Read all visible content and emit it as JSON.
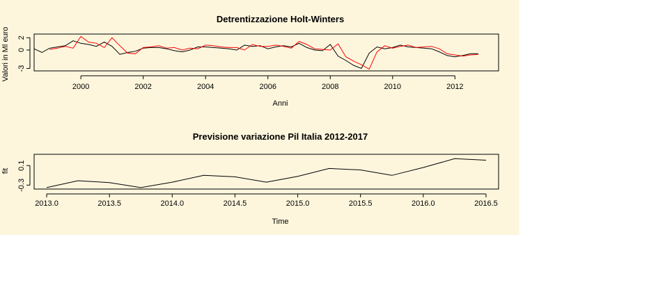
{
  "chart_data": [
    {
      "type": "line",
      "title": "Detrentizzazione Holt-Winters",
      "xlabel": "Anni",
      "ylabel": "Valori in Ml euro",
      "xlim": [
        1998.5,
        2013.4
      ],
      "ylim": [
        -3.4,
        2.6
      ],
      "xticks": [
        2000,
        2002,
        2004,
        2006,
        2008,
        2010,
        2012
      ],
      "yticks": [
        -3,
        0,
        2
      ],
      "grid": false,
      "series": [
        {
          "color": "#000000",
          "values": [
            [
              1998.5,
              0.2
            ],
            [
              1998.75,
              -0.4
            ],
            [
              1999.0,
              0.3
            ],
            [
              1999.25,
              0.5
            ],
            [
              1999.5,
              0.7
            ],
            [
              1999.75,
              1.5
            ],
            [
              2000.0,
              1.1
            ],
            [
              2000.25,
              0.9
            ],
            [
              2000.5,
              0.6
            ],
            [
              2000.75,
              1.3
            ],
            [
              2001.0,
              0.6
            ],
            [
              2001.25,
              -0.7
            ],
            [
              2001.5,
              -0.4
            ],
            [
              2001.75,
              -0.2
            ],
            [
              2002.0,
              0.3
            ],
            [
              2002.25,
              0.4
            ],
            [
              2002.5,
              0.4
            ],
            [
              2002.75,
              0.2
            ],
            [
              2003.0,
              -0.1
            ],
            [
              2003.25,
              -0.3
            ],
            [
              2003.5,
              0.0
            ],
            [
              2003.75,
              0.5
            ],
            [
              2004.0,
              0.5
            ],
            [
              2004.25,
              0.4
            ],
            [
              2004.5,
              0.3
            ],
            [
              2004.75,
              0.2
            ],
            [
              2005.0,
              0.0
            ],
            [
              2005.25,
              0.8
            ],
            [
              2005.5,
              0.6
            ],
            [
              2005.75,
              0.7
            ],
            [
              2006.0,
              0.2
            ],
            [
              2006.25,
              0.5
            ],
            [
              2006.5,
              0.7
            ],
            [
              2006.75,
              0.5
            ],
            [
              2007.0,
              1.1
            ],
            [
              2007.25,
              0.4
            ],
            [
              2007.5,
              0.0
            ],
            [
              2007.75,
              -0.1
            ],
            [
              2008.0,
              0.9
            ],
            [
              2008.25,
              -1.0
            ],
            [
              2008.5,
              -1.7
            ],
            [
              2008.75,
              -2.5
            ],
            [
              2009.0,
              -3.0
            ],
            [
              2009.25,
              -0.5
            ],
            [
              2009.5,
              0.5
            ],
            [
              2009.75,
              0.2
            ],
            [
              2010.0,
              0.4
            ],
            [
              2010.25,
              0.8
            ],
            [
              2010.5,
              0.5
            ],
            [
              2010.75,
              0.4
            ],
            [
              2011.0,
              0.3
            ],
            [
              2011.25,
              0.2
            ],
            [
              2011.5,
              -0.3
            ],
            [
              2011.75,
              -0.9
            ],
            [
              2012.0,
              -1.1
            ],
            [
              2012.25,
              -0.9
            ],
            [
              2012.5,
              -0.6
            ],
            [
              2012.75,
              -0.6
            ]
          ]
        },
        {
          "color": "#ff0000",
          "values": [
            [
              1999.0,
              0.1
            ],
            [
              1999.25,
              0.3
            ],
            [
              1999.5,
              0.6
            ],
            [
              1999.75,
              0.3
            ],
            [
              2000.0,
              2.2
            ],
            [
              2000.25,
              1.3
            ],
            [
              2000.5,
              1.1
            ],
            [
              2000.75,
              0.4
            ],
            [
              2001.0,
              2.0
            ],
            [
              2001.25,
              0.7
            ],
            [
              2001.5,
              -0.5
            ],
            [
              2001.75,
              -0.6
            ],
            [
              2002.0,
              0.4
            ],
            [
              2002.25,
              0.5
            ],
            [
              2002.5,
              0.7
            ],
            [
              2002.75,
              0.3
            ],
            [
              2003.0,
              0.4
            ],
            [
              2003.25,
              0.0
            ],
            [
              2003.5,
              0.3
            ],
            [
              2003.75,
              0.2
            ],
            [
              2004.0,
              0.8
            ],
            [
              2004.25,
              0.7
            ],
            [
              2004.5,
              0.5
            ],
            [
              2004.75,
              0.4
            ],
            [
              2005.0,
              0.4
            ],
            [
              2005.25,
              0.0
            ],
            [
              2005.5,
              0.9
            ],
            [
              2005.75,
              0.6
            ],
            [
              2006.0,
              0.6
            ],
            [
              2006.25,
              0.8
            ],
            [
              2006.5,
              0.6
            ],
            [
              2006.75,
              0.3
            ],
            [
              2007.0,
              1.4
            ],
            [
              2007.25,
              0.9
            ],
            [
              2007.5,
              0.2
            ],
            [
              2007.75,
              0.1
            ],
            [
              2008.0,
              0.0
            ],
            [
              2008.25,
              1.0
            ],
            [
              2008.5,
              -1.1
            ],
            [
              2008.75,
              -1.8
            ],
            [
              2009.0,
              -2.4
            ],
            [
              2009.25,
              -3.1
            ],
            [
              2009.5,
              -0.3
            ],
            [
              2009.75,
              0.7
            ],
            [
              2010.0,
              0.3
            ],
            [
              2010.25,
              0.6
            ],
            [
              2010.5,
              0.8
            ],
            [
              2010.75,
              0.4
            ],
            [
              2011.0,
              0.5
            ],
            [
              2011.25,
              0.6
            ],
            [
              2011.5,
              0.2
            ],
            [
              2011.75,
              -0.6
            ],
            [
              2012.0,
              -0.8
            ],
            [
              2012.25,
              -1.0
            ],
            [
              2012.5,
              -0.8
            ],
            [
              2012.75,
              -0.7
            ]
          ]
        }
      ]
    },
    {
      "type": "line",
      "title": "Previsione variazione Pil Italia 2012-2017",
      "xlabel": "Time",
      "ylabel": "fit",
      "xlim": [
        2012.9,
        2016.6
      ],
      "ylim": [
        -0.38,
        0.33
      ],
      "xticks": [
        "2013.0",
        "2013.5",
        "2014.0",
        "2014.5",
        "2015.0",
        "2015.5",
        "2016.0",
        "2016.5"
      ],
      "yticks": [
        "-0.3",
        "0.1"
      ],
      "grid": false,
      "series": [
        {
          "color": "#000000",
          "values": [
            [
              2013.0,
              -0.35
            ],
            [
              2013.25,
              -0.21
            ],
            [
              2013.5,
              -0.25
            ],
            [
              2013.75,
              -0.35
            ],
            [
              2014.0,
              -0.24
            ],
            [
              2014.25,
              -0.1
            ],
            [
              2014.5,
              -0.13
            ],
            [
              2014.75,
              -0.24
            ],
            [
              2015.0,
              -0.12
            ],
            [
              2015.25,
              0.04
            ],
            [
              2015.5,
              0.01
            ],
            [
              2015.75,
              -0.1
            ],
            [
              2016.0,
              0.06
            ],
            [
              2016.25,
              0.24
            ],
            [
              2016.5,
              0.21
            ]
          ]
        }
      ]
    }
  ]
}
